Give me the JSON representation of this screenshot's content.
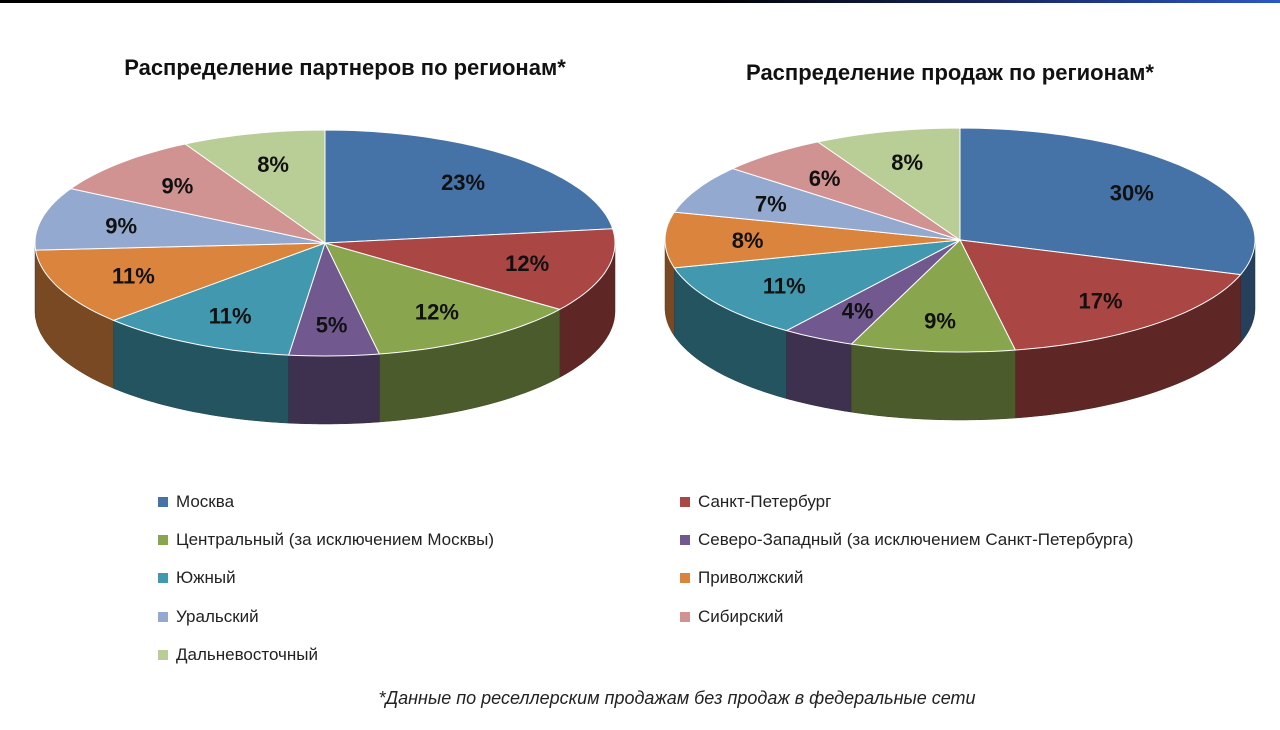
{
  "footnote": "*Данные по реселлерским продажам без продаж в федеральные сети",
  "legend": [
    {
      "label": "Москва",
      "color": "#4572a7"
    },
    {
      "label": "Санкт-Петербург",
      "color": "#aa4643"
    },
    {
      "label": "Центральный  (за исключением  Москвы)",
      "color": "#89a54e"
    },
    {
      "label": "Северо-Западный  (за исключением  Санкт-Петербурга)",
      "color": "#71588f"
    },
    {
      "label": "Южный",
      "color": "#4198af"
    },
    {
      "label": "Приволжский",
      "color": "#db843d"
    },
    {
      "label": "Уральский",
      "color": "#93a9cf"
    },
    {
      "label": "Сибирский",
      "color": "#d19392"
    },
    {
      "label": "Дальневосточный",
      "color": "#b9cd96"
    }
  ],
  "chart_data": [
    {
      "type": "pie",
      "title": "Распределение партнеров по регионам*",
      "categories": [
        "Москва",
        "Санкт-Петербург",
        "Центральный  (за исключением  Москвы)",
        "Северо-Западный  (за исключением  Санкт-Петербурга)",
        "Южный",
        "Приволжский",
        "Уральский",
        "Сибирский",
        "Дальневосточный"
      ],
      "values": [
        23,
        12,
        12,
        5,
        11,
        11,
        9,
        9,
        8
      ],
      "labels": [
        "23%",
        "12%",
        "12%",
        "5%",
        "11%",
        "11%",
        "9%",
        "9%",
        "8%"
      ],
      "style": "3d",
      "legend_position": "bottom"
    },
    {
      "type": "pie",
      "title": "Распределение продаж по регионам*",
      "categories": [
        "Москва",
        "Санкт-Петербург",
        "Центральный  (за исключением  Москвы)",
        "Северо-Западный  (за исключением  Санкт-Петербурга)",
        "Южный",
        "Приволжский",
        "Уральский",
        "Сибирский",
        "Дальневосточный"
      ],
      "values": [
        30,
        17,
        9,
        4,
        11,
        8,
        7,
        6,
        8
      ],
      "labels": [
        "30%",
        "17%",
        "9%",
        "4%",
        "11%",
        "8%",
        "7%",
        "6%",
        "8%"
      ],
      "style": "3d",
      "legend_position": "bottom"
    }
  ]
}
